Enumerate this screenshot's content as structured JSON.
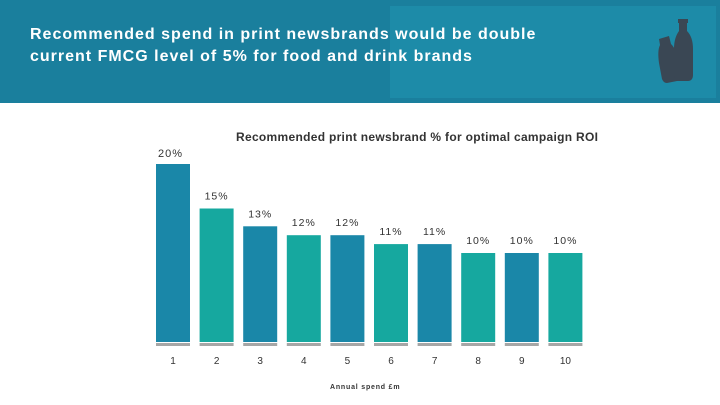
{
  "header": {
    "title_line1": "Recommended spend in print newsbrands would be double",
    "title_line2": "current FMCG level of 5% for food and drink brands",
    "background_color": "#1a7f9d",
    "icon": "bottles-icon"
  },
  "chart_data": {
    "type": "bar",
    "title": "Recommended print newsbrand % for optimal campaign ROI",
    "xlabel": "Annual spend £m",
    "ylabel": "",
    "ytick_label": "20%",
    "ylim": [
      0,
      20
    ],
    "categories": [
      "1",
      "2",
      "3",
      "4",
      "5",
      "6",
      "7",
      "8",
      "9",
      "10"
    ],
    "values": [
      20,
      15,
      13,
      12,
      12,
      11,
      11,
      10,
      10,
      10
    ],
    "value_labels": [
      "",
      "15%",
      "13%",
      "12%",
      "12%",
      "11%",
      "11%",
      "10%",
      "10%",
      "10%"
    ],
    "colors": [
      "#1a87a8",
      "#16a89f"
    ],
    "baseline_color": "#a6a6a6"
  }
}
